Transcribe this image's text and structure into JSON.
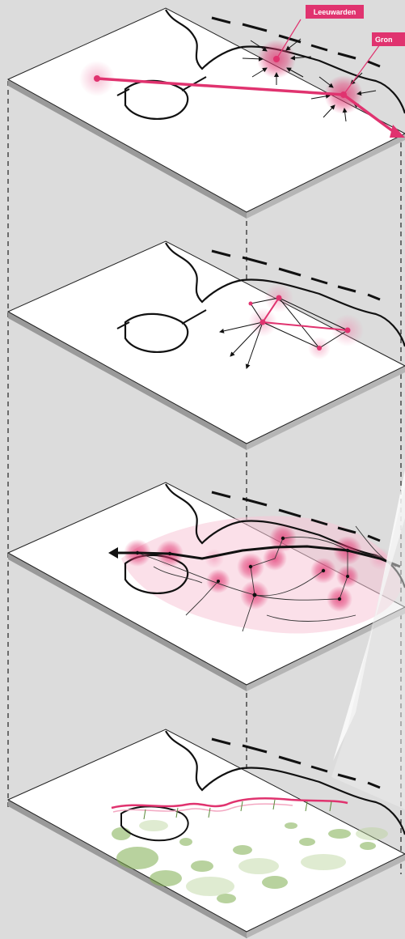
{
  "diagram": {
    "layers": [
      {
        "id": "layer-1",
        "theme": "major-cities-connections"
      },
      {
        "id": "layer-2",
        "theme": "regional-network"
      },
      {
        "id": "layer-3",
        "theme": "urban-zones-and-routes"
      },
      {
        "id": "layer-4",
        "theme": "landscape-and-coastline"
      }
    ],
    "labels": {
      "leeuwarden": "Leeuwarden",
      "groningen": "Gron"
    },
    "colors": {
      "accent": "#e0336f",
      "accent_soft": "#f3a8c2",
      "background": "#dcdcdc",
      "slab_top": "#ffffff",
      "slab_edge": "#9a9a9a",
      "green": "#7fae4f"
    }
  }
}
